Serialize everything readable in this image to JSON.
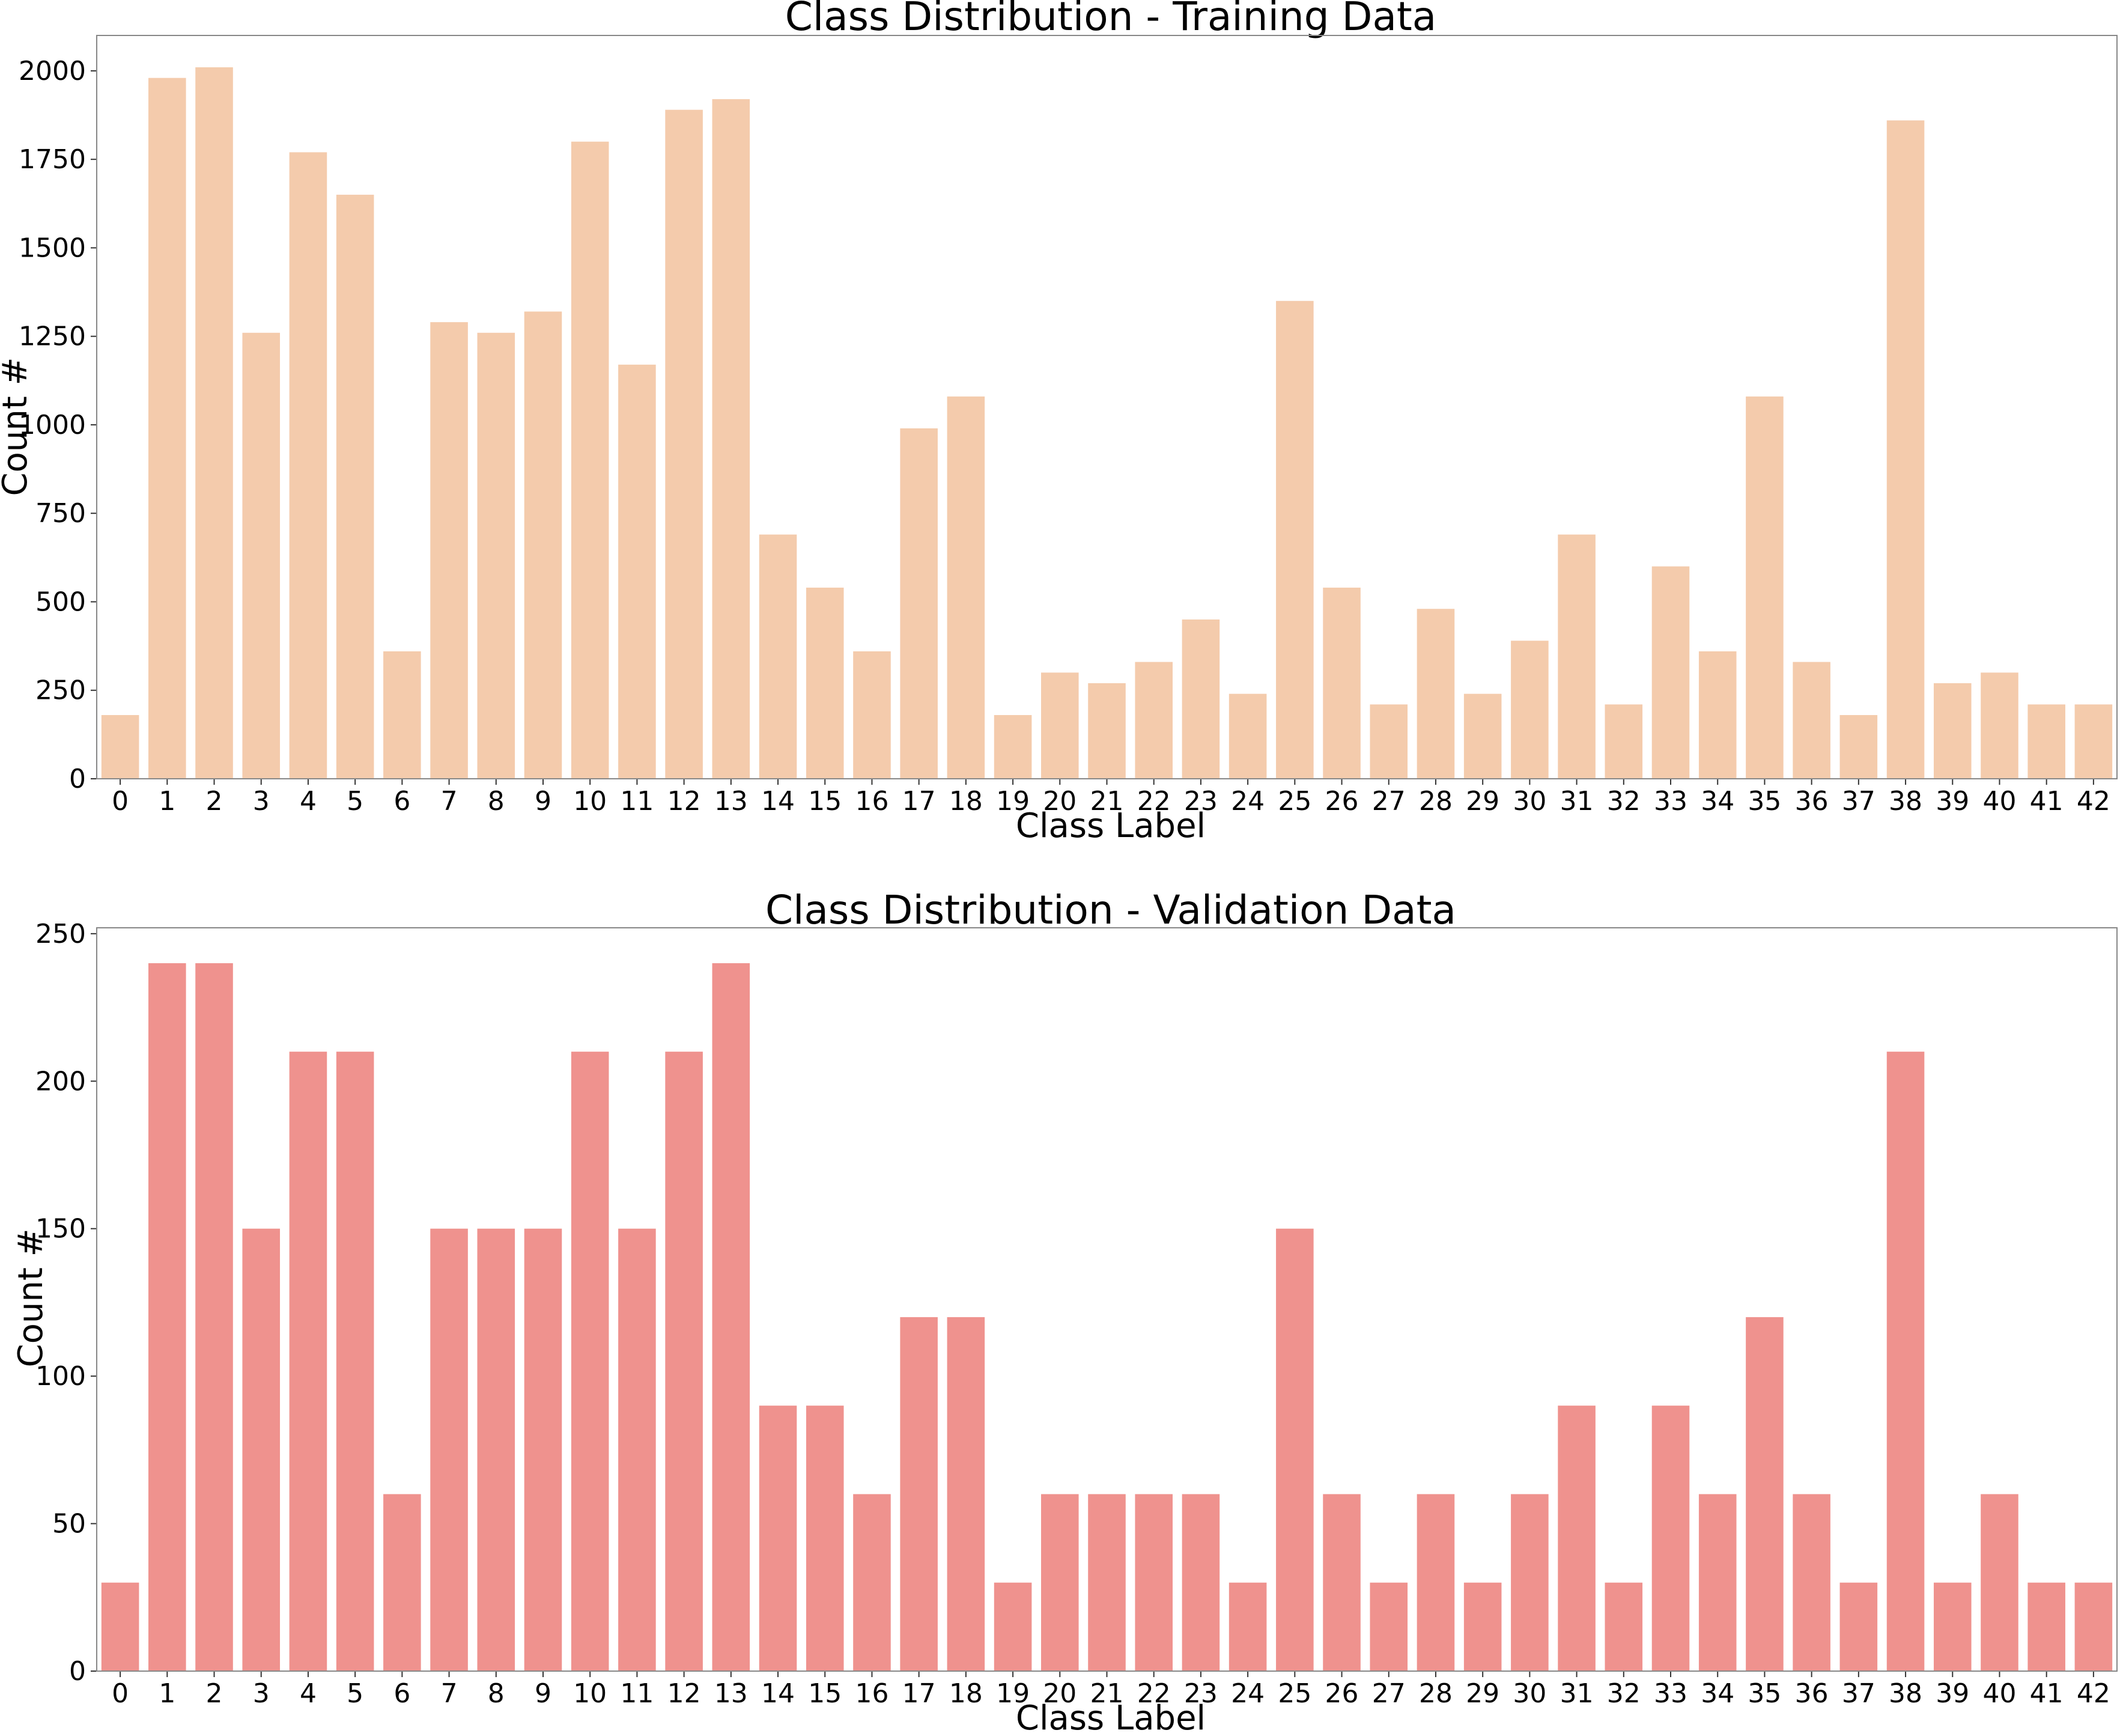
{
  "chart_data": [
    {
      "type": "bar",
      "title": "Class Distribution - Training Data",
      "xlabel": "Class Label",
      "ylabel": "Count #",
      "ylim": [
        0,
        2100
      ],
      "yticks": [
        0,
        250,
        500,
        750,
        1000,
        1250,
        1500,
        1750,
        2000
      ],
      "grid": false,
      "color": "#f4cbac",
      "categories": [
        "0",
        "1",
        "2",
        "3",
        "4",
        "5",
        "6",
        "7",
        "8",
        "9",
        "10",
        "11",
        "12",
        "13",
        "14",
        "15",
        "16",
        "17",
        "18",
        "19",
        "20",
        "21",
        "22",
        "23",
        "24",
        "25",
        "26",
        "27",
        "28",
        "29",
        "30",
        "31",
        "32",
        "33",
        "34",
        "35",
        "36",
        "37",
        "38",
        "39",
        "40",
        "41",
        "42"
      ],
      "values": [
        180,
        1980,
        2010,
        1260,
        1770,
        1650,
        360,
        1290,
        1260,
        1320,
        1800,
        1170,
        1890,
        1920,
        690,
        540,
        360,
        990,
        1080,
        180,
        300,
        270,
        330,
        450,
        240,
        1350,
        540,
        210,
        480,
        240,
        390,
        690,
        210,
        600,
        360,
        1080,
        330,
        180,
        1860,
        270,
        300,
        210,
        210
      ]
    },
    {
      "type": "bar",
      "title": "Class Distribution - Validation Data",
      "xlabel": "Class Label",
      "ylabel": "Count #",
      "ylim": [
        0,
        252
      ],
      "yticks": [
        0,
        50,
        100,
        150,
        200,
        250
      ],
      "grid": false,
      "color": "#ef928e",
      "categories": [
        "0",
        "1",
        "2",
        "3",
        "4",
        "5",
        "6",
        "7",
        "8",
        "9",
        "10",
        "11",
        "12",
        "13",
        "14",
        "15",
        "16",
        "17",
        "18",
        "19",
        "20",
        "21",
        "22",
        "23",
        "24",
        "25",
        "26",
        "27",
        "28",
        "29",
        "30",
        "31",
        "32",
        "33",
        "34",
        "35",
        "36",
        "37",
        "38",
        "39",
        "40",
        "41",
        "42"
      ],
      "values": [
        30,
        240,
        240,
        150,
        210,
        210,
        60,
        150,
        150,
        150,
        210,
        150,
        210,
        240,
        90,
        90,
        60,
        120,
        120,
        30,
        60,
        60,
        60,
        60,
        30,
        150,
        60,
        30,
        60,
        30,
        60,
        90,
        30,
        90,
        60,
        120,
        60,
        30,
        210,
        30,
        60,
        30,
        30
      ]
    }
  ]
}
